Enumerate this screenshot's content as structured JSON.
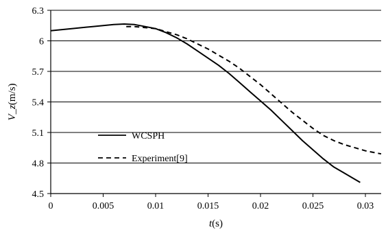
{
  "chart_data": {
    "type": "line",
    "xlabel": {
      "var": "t",
      "unit": "(s)"
    },
    "ylabel": {
      "var": "V_z",
      "unit": "(m/s)"
    },
    "xlim": [
      0,
      0.0315
    ],
    "ylim": [
      4.5,
      6.3
    ],
    "xticks": [
      0,
      0.005,
      0.01,
      0.015,
      0.02,
      0.025,
      0.03
    ],
    "xtick_labels": [
      "0",
      "0.005",
      "0.01",
      "0.015",
      "0.02",
      "0.025",
      "0.03"
    ],
    "yticks": [
      4.5,
      4.8,
      5.1,
      5.4,
      5.7,
      6.0,
      6.3
    ],
    "ytick_labels": [
      "4.5",
      "4.8",
      "5.1",
      "5.4",
      "5.7",
      "6",
      "6.3"
    ],
    "grid": {
      "y": true,
      "x": false
    },
    "legend_position": "lower-left",
    "series": [
      {
        "name": "WCSPH",
        "style": "solid",
        "color": "#000000",
        "x": [
          0,
          0.002,
          0.004,
          0.006,
          0.007,
          0.008,
          0.009,
          0.01,
          0.011,
          0.012,
          0.013,
          0.014,
          0.015,
          0.016,
          0.017,
          0.018,
          0.019,
          0.02,
          0.021,
          0.022,
          0.023,
          0.024,
          0.025,
          0.026,
          0.027,
          0.028,
          0.029,
          0.0295
        ],
        "y": [
          6.1,
          6.12,
          6.14,
          6.16,
          6.165,
          6.16,
          6.14,
          6.12,
          6.08,
          6.03,
          5.97,
          5.9,
          5.83,
          5.76,
          5.68,
          5.59,
          5.5,
          5.41,
          5.32,
          5.22,
          5.12,
          5.02,
          4.93,
          4.84,
          4.76,
          4.7,
          4.64,
          4.61
        ]
      },
      {
        "name": "Experiment[9]",
        "style": "dashed",
        "color": "#000000",
        "x": [
          0.0072,
          0.008,
          0.009,
          0.01,
          0.011,
          0.012,
          0.013,
          0.014,
          0.015,
          0.016,
          0.017,
          0.018,
          0.019,
          0.02,
          0.021,
          0.022,
          0.023,
          0.024,
          0.025,
          0.026,
          0.027,
          0.028,
          0.029,
          0.03,
          0.031,
          0.0315
        ],
        "y": [
          6.14,
          6.14,
          6.13,
          6.12,
          6.09,
          6.06,
          6.02,
          5.97,
          5.92,
          5.86,
          5.8,
          5.73,
          5.65,
          5.57,
          5.48,
          5.39,
          5.3,
          5.22,
          5.14,
          5.07,
          5.02,
          4.98,
          4.95,
          4.92,
          4.9,
          4.89
        ]
      }
    ]
  }
}
